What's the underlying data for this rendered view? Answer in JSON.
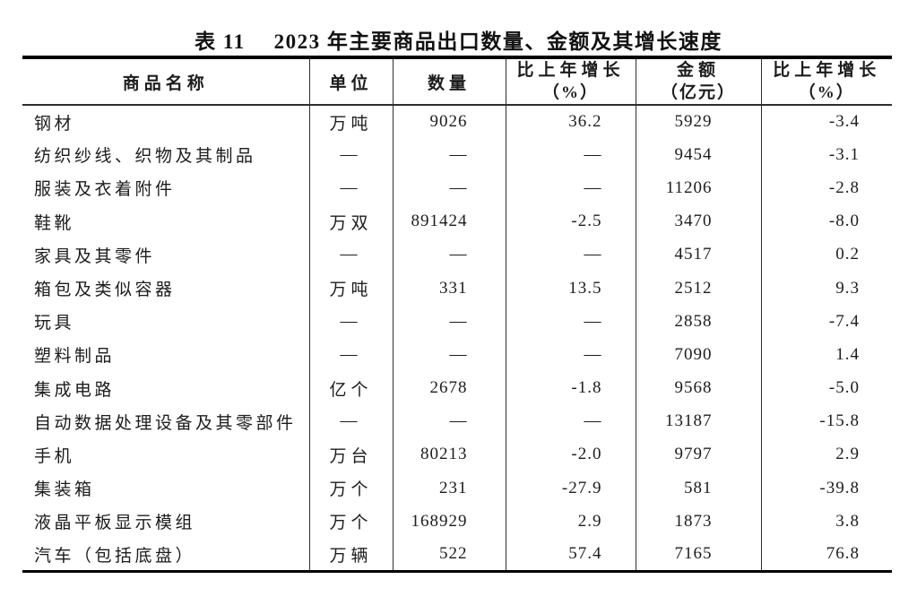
{
  "page": {
    "background": "#ffffff",
    "text_color": "#1c1c1c",
    "border_color": "#000000"
  },
  "title": {
    "prefix": "表 11",
    "text": "2023 年主要商品出口数量、金额及其增长速度"
  },
  "table": {
    "header": {
      "commodity": "商品名称",
      "unit": "单位",
      "quantity": "数量",
      "quantity_growth_line1": "比上年增长",
      "quantity_growth_line2": "（%）",
      "value_line1": "金额",
      "value_line2": "（亿元）",
      "value_growth_line1": "比上年增长",
      "value_growth_line2": "（%）"
    },
    "rows": [
      {
        "name": "钢材",
        "unit": "万吨",
        "quantity": "9026",
        "quantity_growth": "36.2",
        "value": "5929",
        "value_growth": "-3.4"
      },
      {
        "name": "纺织纱线、织物及其制品",
        "unit": "—",
        "quantity": "—",
        "quantity_growth": "—",
        "value": "9454",
        "value_growth": "-3.1"
      },
      {
        "name": "服装及衣着附件",
        "unit": "—",
        "quantity": "—",
        "quantity_growth": "—",
        "value": "11206",
        "value_growth": "-2.8"
      },
      {
        "name": "鞋靴",
        "unit": "万双",
        "quantity": "891424",
        "quantity_growth": "-2.5",
        "value": "3470",
        "value_growth": "-8.0"
      },
      {
        "name": "家具及其零件",
        "unit": "—",
        "quantity": "—",
        "quantity_growth": "—",
        "value": "4517",
        "value_growth": "0.2"
      },
      {
        "name": "箱包及类似容器",
        "unit": "万吨",
        "quantity": "331",
        "quantity_growth": "13.5",
        "value": "2512",
        "value_growth": "9.3"
      },
      {
        "name": "玩具",
        "unit": "—",
        "quantity": "—",
        "quantity_growth": "—",
        "value": "2858",
        "value_growth": "-7.4"
      },
      {
        "name": "塑料制品",
        "unit": "—",
        "quantity": "—",
        "quantity_growth": "—",
        "value": "7090",
        "value_growth": "1.4"
      },
      {
        "name": "集成电路",
        "unit": "亿个",
        "quantity": "2678",
        "quantity_growth": "-1.8",
        "value": "9568",
        "value_growth": "-5.0"
      },
      {
        "name": "自动数据处理设备及其零部件",
        "unit": "—",
        "quantity": "—",
        "quantity_growth": "—",
        "value": "13187",
        "value_growth": "-15.8"
      },
      {
        "name": "手机",
        "unit": "万台",
        "quantity": "80213",
        "quantity_growth": "-2.0",
        "value": "9797",
        "value_growth": "2.9"
      },
      {
        "name": "集装箱",
        "unit": "万个",
        "quantity": "231",
        "quantity_growth": "-27.9",
        "value": "581",
        "value_growth": "-39.8"
      },
      {
        "name": "液晶平板显示模组",
        "unit": "万个",
        "quantity": "168929",
        "quantity_growth": "2.9",
        "value": "1873",
        "value_growth": "3.8"
      },
      {
        "name": "汽车（包括底盘）",
        "unit": "万辆",
        "quantity": "522",
        "quantity_growth": "57.4",
        "value": "7165",
        "value_growth": "76.8"
      }
    ]
  }
}
